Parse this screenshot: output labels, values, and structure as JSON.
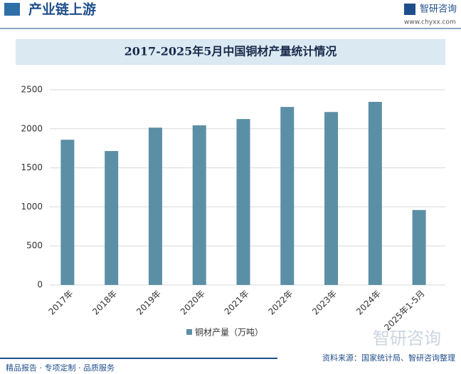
{
  "header": {
    "section": "产业链上游",
    "brand": "智研咨询",
    "url": "www.chyxx.com"
  },
  "chart_data": {
    "type": "bar",
    "title": "2017-2025年5月中国铜材产量统计情况",
    "categories": [
      "2017年",
      "2018年",
      "2019年",
      "2020年",
      "2021年",
      "2022年",
      "2023年",
      "2024年",
      "2025年1-5月"
    ],
    "series": [
      {
        "name": "铜材产量（万吨）",
        "color": "#5b8fa6",
        "values": [
          1860,
          1715,
          2015,
          2045,
          2125,
          2280,
          2215,
          2345,
          960
        ]
      }
    ],
    "ylim": [
      0,
      2500
    ],
    "yticks": [
      0,
      500,
      1000,
      1500,
      2000,
      2500
    ],
    "grid": true,
    "legend": "bottom"
  },
  "footer": {
    "slogan": "精品报告 · 专项定制 · 品质服务",
    "source": "资料来源：国家统计局、智研咨询整理",
    "watermark": "智研咨询"
  }
}
